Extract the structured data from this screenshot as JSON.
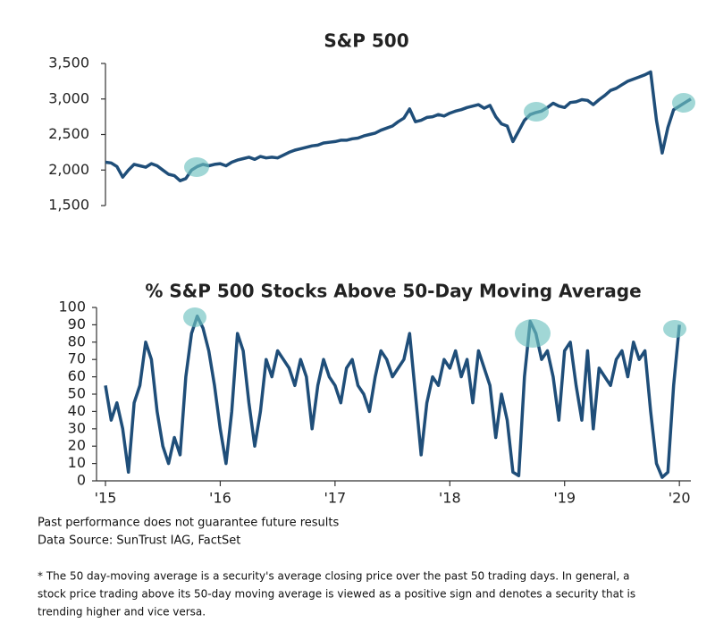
{
  "chart_data": [
    {
      "type": "line",
      "title": "S&P 500",
      "x": [
        2015.0,
        2015.05,
        2015.1,
        2015.15,
        2015.2,
        2015.25,
        2015.3,
        2015.35,
        2015.4,
        2015.45,
        2015.5,
        2015.55,
        2015.6,
        2015.65,
        2015.7,
        2015.75,
        2015.8,
        2015.85,
        2015.9,
        2015.95,
        2016.0,
        2016.05,
        2016.1,
        2016.15,
        2016.2,
        2016.25,
        2016.3,
        2016.35,
        2016.4,
        2016.45,
        2016.5,
        2016.55,
        2016.6,
        2016.65,
        2016.7,
        2016.75,
        2016.8,
        2016.85,
        2016.9,
        2016.95,
        2017.0,
        2017.05,
        2017.1,
        2017.15,
        2017.2,
        2017.25,
        2017.3,
        2017.35,
        2017.4,
        2017.45,
        2017.5,
        2017.55,
        2017.6,
        2017.65,
        2017.7,
        2017.75,
        2017.8,
        2017.85,
        2017.9,
        2017.95,
        2018.0,
        2018.05,
        2018.1,
        2018.15,
        2018.2,
        2018.25,
        2018.3,
        2018.35,
        2018.4,
        2018.45,
        2018.5,
        2018.55,
        2018.6,
        2018.65,
        2018.7,
        2018.75,
        2018.8,
        2018.85,
        2018.9,
        2018.95,
        2019.0,
        2019.05,
        2019.1,
        2019.15,
        2019.2,
        2019.25,
        2019.3,
        2019.35,
        2019.4,
        2019.45,
        2019.5,
        2019.55,
        2019.6,
        2019.65,
        2019.7,
        2019.75,
        2019.8,
        2019.85,
        2019.9,
        2019.95,
        2020.0,
        2020.05,
        2020.1
      ],
      "series": [
        {
          "name": "S&P 500",
          "color": "#1f4e79",
          "values": [
            2110,
            2100,
            2050,
            1900,
            2000,
            2080,
            2060,
            2040,
            2090,
            2060,
            2000,
            1940,
            1920,
            1850,
            1880,
            2000,
            2050,
            2080,
            2060,
            2080,
            2090,
            2060,
            2110,
            2140,
            2160,
            2180,
            2150,
            2190,
            2170,
            2180,
            2170,
            2210,
            2250,
            2280,
            2300,
            2320,
            2340,
            2350,
            2380,
            2390,
            2400,
            2420,
            2420,
            2440,
            2450,
            2480,
            2500,
            2520,
            2560,
            2590,
            2620,
            2680,
            2730,
            2860,
            2680,
            2700,
            2740,
            2750,
            2780,
            2760,
            2800,
            2830,
            2850,
            2880,
            2900,
            2920,
            2870,
            2910,
            2750,
            2650,
            2620,
            2400,
            2550,
            2700,
            2780,
            2810,
            2830,
            2880,
            2940,
            2900,
            2880,
            2950,
            2960,
            2990,
            2980,
            2920,
            2990,
            3050,
            3120,
            3150,
            3200,
            3250,
            3280,
            3310,
            3340,
            3380,
            2700,
            2240,
            2600,
            2850,
            2900,
            2950,
            3000
          ]
        }
      ],
      "xlim": [
        2015,
        2020.1
      ],
      "ylim": [
        1500,
        3500
      ],
      "yticks": [
        {
          "value": 1500,
          "label": "1,500"
        },
        {
          "value": 2000,
          "label": "2,000"
        },
        {
          "value": 2500,
          "label": "2,500"
        },
        {
          "value": 3000,
          "label": "3,000"
        },
        {
          "value": 3500,
          "label": "3,500"
        }
      ]
    },
    {
      "type": "line",
      "title": "% S&P 500 Stocks Above 50-Day Moving Average",
      "x": [
        2015.0,
        2015.05,
        2015.1,
        2015.15,
        2015.2,
        2015.25,
        2015.3,
        2015.35,
        2015.4,
        2015.45,
        2015.5,
        2015.55,
        2015.6,
        2015.65,
        2015.7,
        2015.75,
        2015.8,
        2015.85,
        2015.9,
        2015.95,
        2016.0,
        2016.05,
        2016.1,
        2016.15,
        2016.2,
        2016.25,
        2016.3,
        2016.35,
        2016.4,
        2016.45,
        2016.5,
        2016.55,
        2016.6,
        2016.65,
        2016.7,
        2016.75,
        2016.8,
        2016.85,
        2016.9,
        2016.95,
        2017.0,
        2017.05,
        2017.1,
        2017.15,
        2017.2,
        2017.25,
        2017.3,
        2017.35,
        2017.4,
        2017.45,
        2017.5,
        2017.55,
        2017.6,
        2017.65,
        2017.7,
        2017.75,
        2017.8,
        2017.85,
        2017.9,
        2017.95,
        2018.0,
        2018.05,
        2018.1,
        2018.15,
        2018.2,
        2018.25,
        2018.3,
        2018.35,
        2018.4,
        2018.45,
        2018.5,
        2018.55,
        2018.6,
        2018.65,
        2018.7,
        2018.75,
        2018.8,
        2018.85,
        2018.9,
        2018.95,
        2019.0,
        2019.05,
        2019.1,
        2019.15,
        2019.2,
        2019.25,
        2019.3,
        2019.35,
        2019.4,
        2019.45,
        2019.5,
        2019.55,
        2019.6,
        2019.65,
        2019.7,
        2019.75,
        2019.8,
        2019.85,
        2019.9,
        2019.95,
        2020.0
      ],
      "series": [
        {
          "name": "% S&P 500 Stocks Above 50-Day Moving Average",
          "color": "#1f4e79",
          "values": [
            55,
            35,
            45,
            30,
            5,
            45,
            55,
            80,
            70,
            40,
            20,
            10,
            25,
            15,
            60,
            85,
            95,
            88,
            75,
            55,
            30,
            10,
            40,
            85,
            75,
            45,
            20,
            40,
            70,
            60,
            75,
            70,
            65,
            55,
            70,
            60,
            30,
            55,
            70,
            60,
            55,
            45,
            65,
            70,
            55,
            50,
            40,
            60,
            75,
            70,
            60,
            65,
            70,
            85,
            50,
            15,
            45,
            60,
            55,
            70,
            65,
            75,
            60,
            70,
            45,
            75,
            65,
            55,
            25,
            50,
            35,
            5,
            3,
            60,
            92,
            85,
            70,
            75,
            60,
            35,
            75,
            80,
            55,
            35,
            75,
            30,
            65,
            60,
            55,
            70,
            75,
            60,
            80,
            70,
            75,
            40,
            10,
            2,
            5,
            55,
            90
          ]
        }
      ],
      "xlim": [
        2015,
        2020.1
      ],
      "xticks": [
        {
          "value": 2015,
          "label": "'15"
        },
        {
          "value": 2016,
          "label": "'16"
        },
        {
          "value": 2017,
          "label": "'17"
        },
        {
          "value": 2018,
          "label": "'18"
        },
        {
          "value": 2019,
          "label": "'19"
        },
        {
          "value": 2020,
          "label": "'20"
        }
      ],
      "ylim": [
        0,
        100
      ],
      "yticks": [
        0,
        10,
        20,
        30,
        40,
        50,
        60,
        70,
        80,
        90,
        100
      ]
    }
  ],
  "footer": {
    "disclaimer": "Past performance does not guarantee future results",
    "source": "Data Source: SunTrust IAG, FactSet",
    "footnote": [
      "* The 50 day-moving average is a security's average closing price over the past 50 trading days. In general, a",
      "stock price trading above its 50-day moving average is viewed as a positive sign and denotes a security that is",
      "trending higher and vice versa."
    ]
  }
}
